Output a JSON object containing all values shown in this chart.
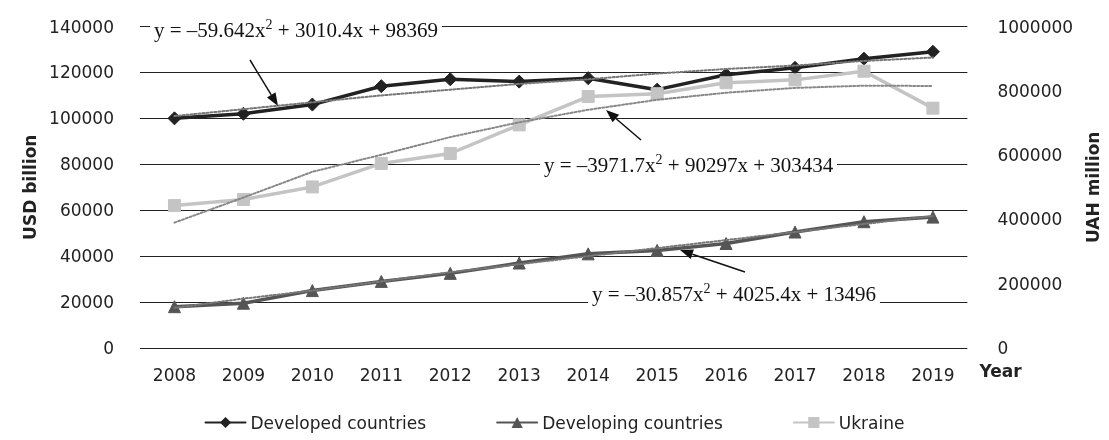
{
  "chart_data": {
    "type": "line",
    "xlabel": "Year",
    "ylabel": "USD billion",
    "y2label": "UAH million",
    "categories": [
      "2008",
      "2009",
      "2010",
      "2011",
      "2012",
      "2013",
      "2014",
      "2015",
      "2016",
      "2017",
      "2018",
      "2019"
    ],
    "series": [
      {
        "name": "Developed countries",
        "color": "#222222",
        "marker": "diamond",
        "values": [
          100000,
          102000,
          106000,
          114000,
          117000,
          116000,
          117500,
          112500,
          119000,
          122000,
          126000,
          129000
        ]
      },
      {
        "name": "Developing countries",
        "color": "#555555",
        "marker": "triangle",
        "values": [
          18000,
          19500,
          25000,
          29000,
          32500,
          37000,
          41000,
          42500,
          45500,
          50500,
          55000,
          57000
        ]
      },
      {
        "name": "Ukraine",
        "color": "#c4c4c4",
        "marker": "square",
        "axis": "y2",
        "values": [
          443000,
          462000,
          501000,
          574000,
          605000,
          694000,
          782000,
          791000,
          825000,
          834000,
          861000,
          746000
        ]
      },
      {
        "type": "line",
        "color": "#777777",
        "marker": "none",
        "line_style": "dotted",
        "values": [
          101000,
          104000,
          107000,
          110000,
          112500,
          115000,
          117000,
          119500,
          121500,
          123000,
          125000,
          126500
        ]
      },
      {
        "type": "line",
        "color": "#777777",
        "marker": "none",
        "line_style": "dotted",
        "values": [
          17500,
          21500,
          25000,
          29000,
          33000,
          36500,
          40000,
          43500,
          47000,
          50500,
          54000,
          57500
        ]
      },
      {
        "type": "line",
        "color": "#888888",
        "marker": "none",
        "line_style": "dotted",
        "axis": "y2",
        "values": [
          390000,
          468000,
          548000,
          601000,
          656000,
          702000,
          741000,
          772000,
          794000,
          809000,
          816000,
          815000
        ]
      }
    ],
    "ylim": [
      0,
      140000
    ],
    "yticks": [
      0,
      20000,
      40000,
      60000,
      80000,
      100000,
      120000,
      140000
    ],
    "y2lim": [
      0,
      1000000
    ],
    "y2ticks": [
      0,
      200000,
      400000,
      600000,
      800000,
      1000000
    ],
    "grid": "y",
    "legend": "bottom",
    "annotations": [
      "y = –59.642x$^{2}$ + 3010.4x + 98369",
      "y = –3971.7x$^{2}$ + 90297x + 303434",
      "y = –30.857x$^{2}$ + 4025.4x + 13496"
    ]
  }
}
